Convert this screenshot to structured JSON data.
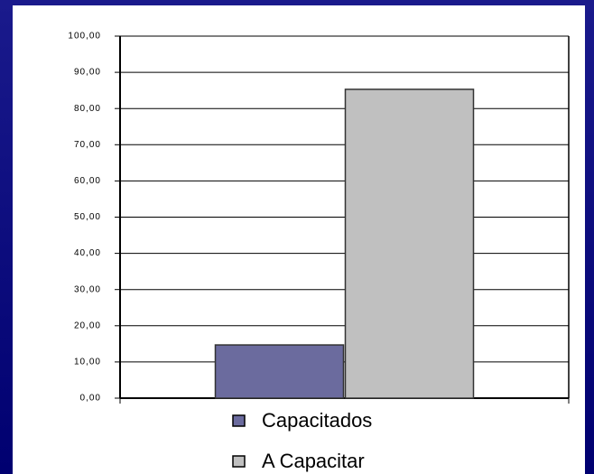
{
  "chart_data": {
    "type": "bar",
    "series": [
      {
        "name": "Capacitados",
        "color": "#6b6b9e",
        "values": [
          14.7
        ]
      },
      {
        "name": "A Capacitar",
        "color": "#c0c0c0",
        "values": [
          85.3
        ]
      }
    ],
    "ylim": [
      0,
      100
    ],
    "yticks": [
      {
        "value": 0,
        "label": "0,00"
      },
      {
        "value": 10,
        "label": "10,00"
      },
      {
        "value": 20,
        "label": "20,00"
      },
      {
        "value": 30,
        "label": "30,00"
      },
      {
        "value": 40,
        "label": "40,00"
      },
      {
        "value": 50,
        "label": "50,00"
      },
      {
        "value": 60,
        "label": "60,00"
      },
      {
        "value": 70,
        "label": "70,00"
      },
      {
        "value": 80,
        "label": "80,00"
      },
      {
        "value": 90,
        "label": "90,00"
      },
      {
        "value": 100,
        "label": "100,00"
      }
    ],
    "grid": true
  }
}
